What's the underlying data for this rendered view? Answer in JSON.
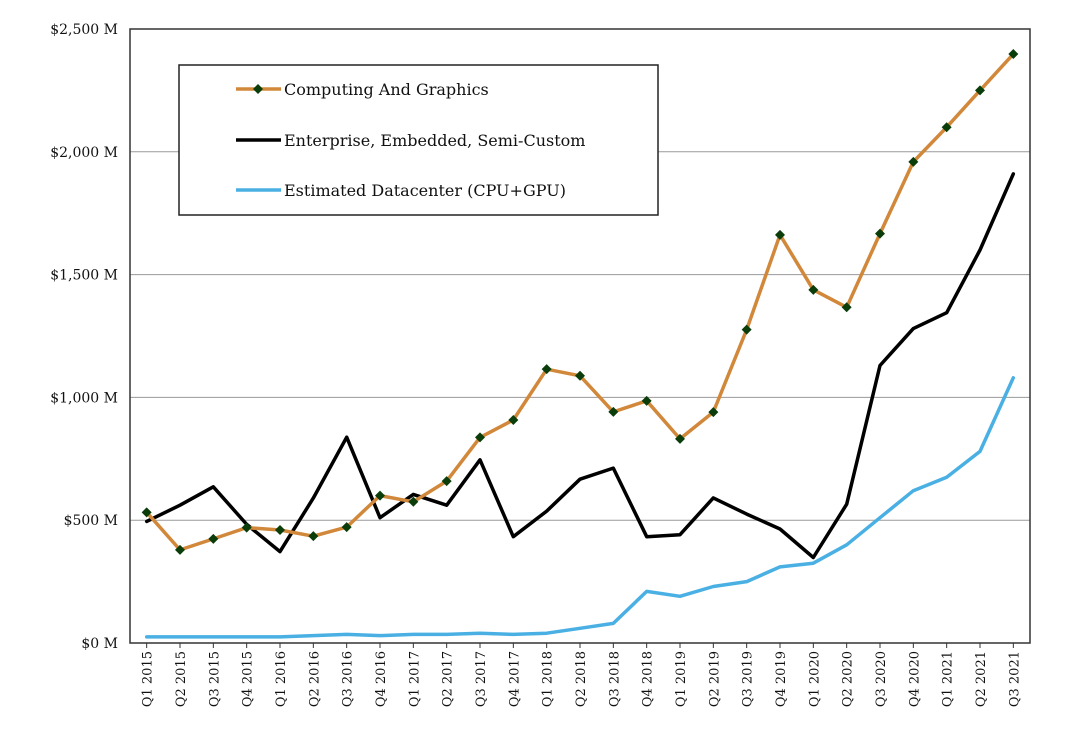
{
  "chart_data": {
    "type": "line",
    "title": "",
    "xlabel": "",
    "ylabel": "",
    "ylim": [
      0,
      2500
    ],
    "yticks": [
      0,
      500,
      1000,
      1500,
      2000,
      2500
    ],
    "ytick_labels": [
      "$0 M",
      "$500 M",
      "$1,000 M",
      "$1,500 M",
      "$2,000 M",
      "$2,500 M"
    ],
    "grid": "horizontal",
    "legend_position": "top-left",
    "categories": [
      "Q1 2015",
      "Q2 2015",
      "Q3 2015",
      "Q4 2015",
      "Q1 2016",
      "Q2 2016",
      "Q3 2016",
      "Q4 2016",
      "Q1 2017",
      "Q2 2017",
      "Q3 2017",
      "Q4 2017",
      "Q1 2018",
      "Q2 2018",
      "Q3 2018",
      "Q4 2018",
      "Q1 2019",
      "Q2 2019",
      "Q3 2019",
      "Q4 2019",
      "Q1 2020",
      "Q2 2020",
      "Q3 2020",
      "Q4 2020",
      "Q1 2021",
      "Q2 2021",
      "Q3 2021"
    ],
    "series": [
      {
        "name": "Computing And Graphics",
        "color": "#d2883a",
        "marker_color": "#0b3d0b",
        "markers": true,
        "values": [
          532,
          379,
          424,
          470,
          460,
          435,
          472,
          600,
          575,
          659,
          837,
          908,
          1115,
          1088,
          941,
          986,
          831,
          940,
          1276,
          1662,
          1438,
          1367,
          1667,
          1959,
          2100,
          2250,
          2398
        ]
      },
      {
        "name": "Enterprise, Embedded, Semi-Custom",
        "color": "#000000",
        "markers": false,
        "values": [
          495,
          561,
          636,
          483,
          372,
          590,
          838,
          510,
          605,
          561,
          746,
          433,
          537,
          667,
          712,
          433,
          441,
          591,
          525,
          464,
          348,
          565,
          1130,
          1280,
          1345,
          1600,
          1910
        ]
      },
      {
        "name": "Estimated Datacenter (CPU+GPU)",
        "color": "#4ab0e4",
        "markers": false,
        "values": [
          25,
          25,
          25,
          25,
          25,
          30,
          35,
          30,
          35,
          35,
          40,
          35,
          40,
          60,
          80,
          210,
          190,
          230,
          250,
          310,
          325,
          400,
          510,
          620,
          675,
          780,
          1080
        ]
      }
    ]
  }
}
